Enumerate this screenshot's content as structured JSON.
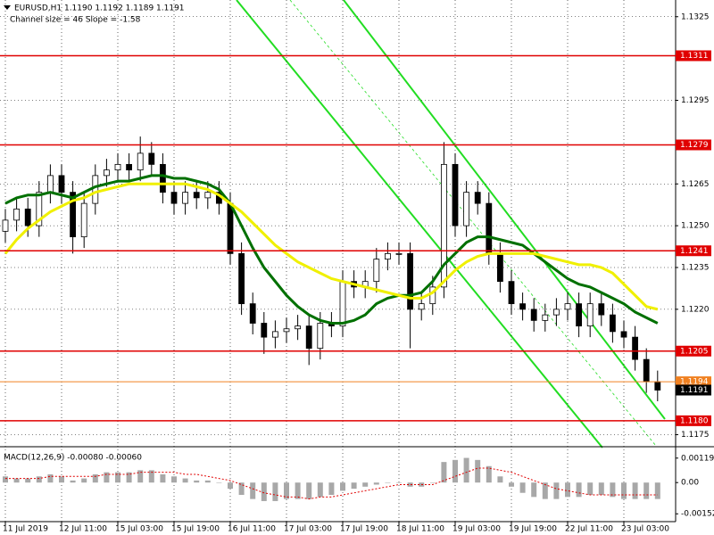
{
  "chart_data": [
    {
      "type": "candlestick",
      "title": "EURUSD,H1  1.1190 1.1192 1.1189 1.1191",
      "subtitle": "Channel size = 46 Slope = -1.58",
      "categories": [
        "11 Jul 2019",
        null,
        null,
        null,
        null,
        "12 Jul 11:00",
        null,
        null,
        null,
        null,
        "15 Jul 03:00",
        null,
        null,
        null,
        null,
        "15 Jul 19:00",
        null,
        null,
        null,
        null,
        "16 Jul 11:00",
        null,
        null,
        null,
        null,
        "17 Jul 03:00",
        null,
        null,
        null,
        null,
        "17 Jul 19:00",
        null,
        null,
        null,
        null,
        "18 Jul 11:00",
        null,
        null,
        null,
        null,
        "19 Jul 03:00",
        null,
        null,
        null,
        null,
        "19 Jul 19:00",
        null,
        null,
        null,
        null,
        "22 Jul 11:00",
        null,
        null,
        null,
        null,
        "23 Jul 03:00",
        null,
        null,
        null
      ],
      "open": [
        1.1248,
        1.1252,
        1.1256,
        1.125,
        1.1262,
        1.1268,
        1.1262,
        1.1246,
        1.1258,
        1.1268,
        1.127,
        1.1272,
        1.127,
        1.1276,
        1.1272,
        1.1262,
        1.1258,
        1.1262,
        1.126,
        1.1262,
        1.1258,
        1.124,
        1.1222,
        1.1215,
        1.121,
        1.1212,
        1.1213,
        1.1214,
        1.1206,
        1.1215,
        1.1214,
        1.123,
        1.1228,
        1.123,
        1.1238,
        1.124,
        1.124,
        1.122,
        1.1222,
        1.1228,
        1.1272,
        1.125,
        1.1262,
        1.1258,
        1.124,
        1.123,
        1.1222,
        1.122,
        1.1216,
        1.1218,
        1.122,
        1.1222,
        1.1214,
        1.1222,
        1.1218,
        1.1212,
        1.121,
        1.1202,
        1.1194
      ],
      "high": [
        1.1256,
        1.126,
        1.126,
        1.1266,
        1.1272,
        1.1272,
        1.1266,
        1.1262,
        1.1272,
        1.1274,
        1.1276,
        1.1276,
        1.1282,
        1.128,
        1.1276,
        1.1266,
        1.1266,
        1.1266,
        1.1266,
        1.1266,
        1.1262,
        1.1244,
        1.1226,
        1.1219,
        1.1216,
        1.1217,
        1.1218,
        1.1218,
        1.1219,
        1.1219,
        1.1234,
        1.1234,
        1.1234,
        1.1242,
        1.1244,
        1.1244,
        1.1244,
        1.1226,
        1.1232,
        1.128,
        1.1276,
        1.1266,
        1.1266,
        1.1262,
        1.1244,
        1.1234,
        1.1226,
        1.1224,
        1.1222,
        1.1224,
        1.1226,
        1.1226,
        1.1226,
        1.1226,
        1.1222,
        1.1216,
        1.1214,
        1.1206,
        1.1198
      ],
      "low": [
        1.1244,
        1.1248,
        1.1246,
        1.1246,
        1.1258,
        1.1258,
        1.124,
        1.1242,
        1.1254,
        1.1264,
        1.1266,
        1.1266,
        1.1266,
        1.1268,
        1.1258,
        1.1254,
        1.1254,
        1.1256,
        1.1256,
        1.1254,
        1.1236,
        1.1218,
        1.1211,
        1.1204,
        1.1206,
        1.1208,
        1.1209,
        1.12,
        1.1202,
        1.121,
        1.121,
        1.1224,
        1.1224,
        1.1226,
        1.1234,
        1.1236,
        1.1206,
        1.1216,
        1.1218,
        1.1224,
        1.1246,
        1.1246,
        1.1254,
        1.1236,
        1.1226,
        1.1218,
        1.1216,
        1.1212,
        1.1212,
        1.1214,
        1.1216,
        1.121,
        1.121,
        1.1214,
        1.1208,
        1.1206,
        1.1198,
        1.119,
        1.1187
      ],
      "close": [
        1.1252,
        1.1256,
        1.125,
        1.1262,
        1.1268,
        1.1262,
        1.1246,
        1.1258,
        1.1268,
        1.127,
        1.1272,
        1.127,
        1.1276,
        1.1272,
        1.1262,
        1.1258,
        1.1262,
        1.126,
        1.1262,
        1.1258,
        1.124,
        1.1222,
        1.1215,
        1.121,
        1.1212,
        1.1213,
        1.1214,
        1.1206,
        1.1215,
        1.1214,
        1.123,
        1.1228,
        1.123,
        1.1238,
        1.124,
        1.124,
        1.122,
        1.1222,
        1.1228,
        1.1272,
        1.125,
        1.1262,
        1.1258,
        1.124,
        1.123,
        1.1222,
        1.122,
        1.1216,
        1.1218,
        1.122,
        1.1222,
        1.1214,
        1.1222,
        1.1218,
        1.1212,
        1.121,
        1.1202,
        1.1194,
        1.1191
      ],
      "color": "#000000",
      "series": [
        {
          "color": "#007000",
          "values": [
            1.1258,
            1.126,
            1.1261,
            1.1261,
            1.1262,
            1.1261,
            1.126,
            1.1262,
            1.1264,
            1.1265,
            1.1266,
            1.1266,
            1.1267,
            1.1268,
            1.1268,
            1.1267,
            1.1267,
            1.1266,
            1.1265,
            1.1263,
            1.1258,
            1.125,
            1.1242,
            1.1235,
            1.123,
            1.1225,
            1.1221,
            1.1218,
            1.1216,
            1.1215,
            1.1215,
            1.1216,
            1.1218,
            1.1222,
            1.1224,
            1.1225,
            1.1225,
            1.1226,
            1.123,
            1.1236,
            1.124,
            1.1244,
            1.1246,
            1.1246,
            1.1245,
            1.1244,
            1.1243,
            1.124,
            1.1237,
            1.1234,
            1.1231,
            1.1229,
            1.1228,
            1.1226,
            1.1224,
            1.1222,
            1.1219,
            1.1217,
            1.1215
          ]
        },
        {
          "color": "#f0f000",
          "values": [
            1.124,
            1.1245,
            1.1249,
            1.1252,
            1.1255,
            1.1257,
            1.1259,
            1.126,
            1.1262,
            1.1263,
            1.1264,
            1.1265,
            1.1265,
            1.1265,
            1.1265,
            1.1265,
            1.1265,
            1.1264,
            1.1263,
            1.1261,
            1.1258,
            1.1255,
            1.1251,
            1.1247,
            1.1243,
            1.124,
            1.1237,
            1.1235,
            1.1233,
            1.1231,
            1.123,
            1.1229,
            1.1228,
            1.1227,
            1.1226,
            1.1225,
            1.1224,
            1.1224,
            1.1226,
            1.123,
            1.1234,
            1.1237,
            1.1239,
            1.124,
            1.124,
            1.124,
            1.124,
            1.124,
            1.1239,
            1.1238,
            1.1237,
            1.1236,
            1.1236,
            1.1235,
            1.1233,
            1.1229,
            1.1225,
            1.1221,
            1.122
          ]
        }
      ],
      "ylim": [
        1.1171,
        1.1331
      ],
      "yticks": [
        1.1325,
        1.1295,
        1.1265,
        {
          "value": 1.125,
          "label": "1.1250"
        },
        1.1235,
        {
          "value": 1.122,
          "label": "1.1220"
        },
        1.1175
      ],
      "grid": true,
      "levels": [
        {
          "value": 1.1311,
          "color": "#e00000"
        },
        {
          "value": 1.1279,
          "color": "#e00000"
        },
        {
          "value": 1.1241,
          "color": "#e00000"
        },
        {
          "value": 1.1205,
          "color": "#e00000"
        },
        {
          "value": 1.118,
          "label": "1.1180",
          "color": "#e00000"
        },
        {
          "value": 1.1194,
          "color": "#f08020"
        }
      ],
      "last_price": 1.1191
    },
    {
      "type": "macd",
      "title": "MACD(12,26,9) -0.00080 -0.00060",
      "series": [
        {
          "type": "histogram",
          "color": "#a8a8a8",
          "values": [
            0.0003,
            0.0002,
            0.0002,
            0.0003,
            0.0004,
            0.0003,
            0.0001,
            0.0002,
            0.0004,
            0.0005,
            0.0005,
            0.0005,
            0.0006,
            0.0006,
            0.0004,
            0.0003,
            0.0002,
            0.0001,
            0.0001,
            0.0,
            -0.0003,
            -0.0006,
            -0.0008,
            -0.0009,
            -0.0009,
            -0.0008,
            -0.0008,
            -0.0008,
            -0.0007,
            -0.0006,
            -0.0004,
            -0.0003,
            -0.0002,
            -0.0001,
            0.0,
            0.0,
            -0.0002,
            -0.0002,
            0.0,
            0.001,
            0.0011,
            0.0012,
            0.0011,
            0.0008,
            0.0003,
            -0.0002,
            -0.0005,
            -0.0007,
            -0.0008,
            -0.0008,
            -0.0007,
            -0.0007,
            -0.0006,
            -0.0006,
            -0.0007,
            -0.0008,
            -0.0008,
            -0.0008,
            -0.0008
          ]
        },
        {
          "type": "line",
          "color": "#e00000",
          "values": [
            0.0002,
            0.0002,
            0.0002,
            0.0002,
            0.0003,
            0.0003,
            0.0003,
            0.0003,
            0.0003,
            0.0004,
            0.0004,
            0.0004,
            0.0005,
            0.0005,
            0.0005,
            0.0005,
            0.0004,
            0.0004,
            0.0003,
            0.0002,
            0.0001,
            -0.0001,
            -0.0003,
            -0.0005,
            -0.0006,
            -0.0007,
            -0.0007,
            -0.0008,
            -0.0007,
            -0.0007,
            -0.0006,
            -0.0005,
            -0.0004,
            -0.0003,
            -0.0002,
            -0.0001,
            -0.0001,
            -0.0001,
            -0.0001,
            0.0001,
            0.0003,
            0.0005,
            0.0007,
            0.0007,
            0.0006,
            0.0005,
            0.0003,
            0.0001,
            -0.0001,
            -0.0003,
            -0.0004,
            -0.0005,
            -0.0006,
            -0.0006,
            -0.0006,
            -0.0006,
            -0.0006,
            -0.0006,
            -0.0006
          ]
        }
      ],
      "ylim": [
        -0.0019,
        0.0017
      ],
      "yticks": [
        0.00119,
        {
          "value": 0,
          "label": "0.00"
        },
        -0.00152
      ]
    }
  ]
}
